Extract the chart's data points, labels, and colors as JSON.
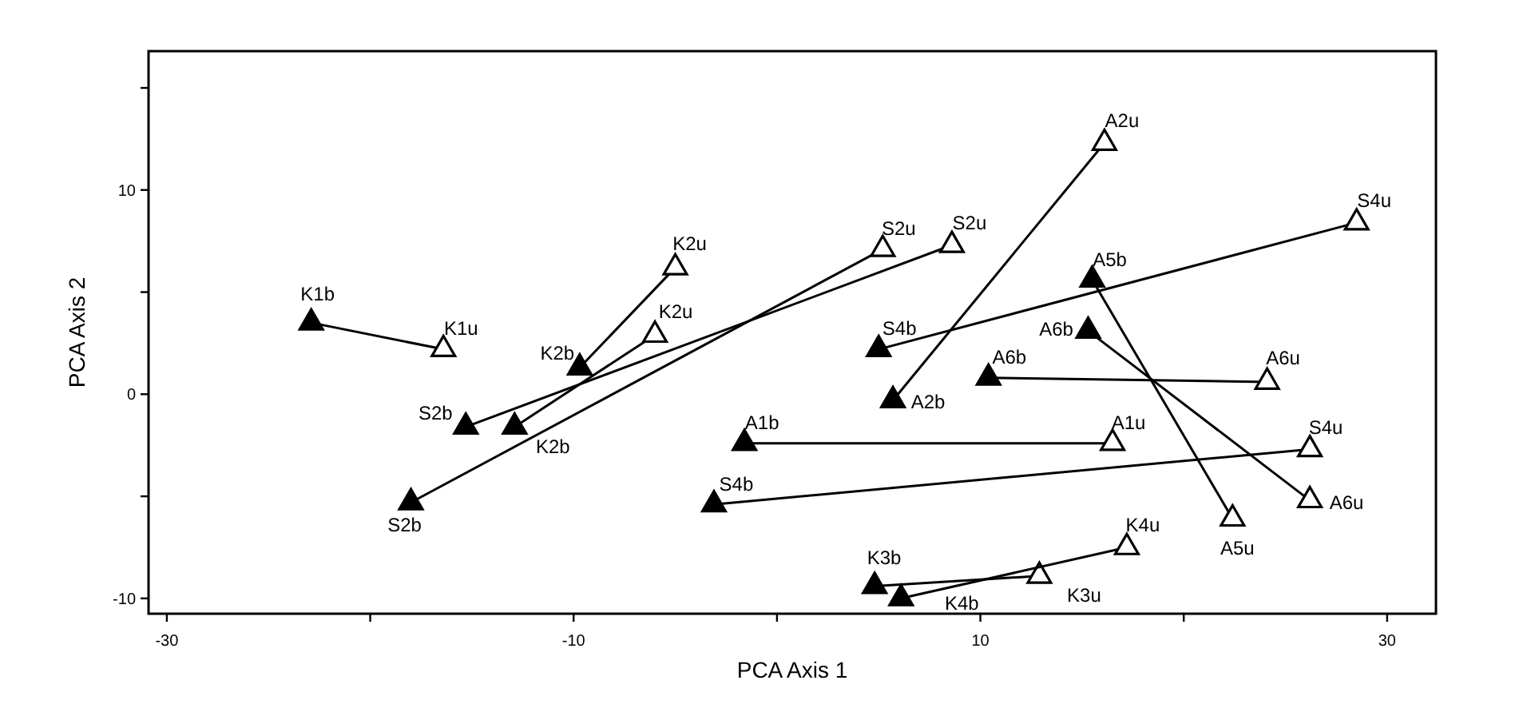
{
  "chart_data": {
    "type": "line",
    "xlabel": "PCA Axis 1",
    "ylabel": "PCA Axis 2",
    "xlim": [
      -30.9,
      32.4
    ],
    "ylim": [
      -10.75,
      16.8
    ],
    "xticks": [
      -30,
      {
        "value": -20,
        "label": null
      },
      -10,
      {
        "value": 0,
        "label": null
      },
      10,
      {
        "value": 20,
        "label": null
      },
      30
    ],
    "yticks": [
      -10,
      {
        "value": -5,
        "label": null
      },
      0,
      {
        "value": 5,
        "label": null
      },
      10,
      {
        "value": 15,
        "label": null
      }
    ],
    "grid": false,
    "marker": "triangle",
    "line_style": "solid",
    "series": [
      {
        "color": "#000000",
        "colors": [
          "#000000",
          "#ffffff"
        ],
        "x": [
          -22.9,
          -16.4
        ],
        "values": [
          3.5,
          2.2
        ]
      },
      {
        "color": "#000000",
        "colors": [
          "#000000",
          "#ffffff"
        ],
        "x": [
          -9.7,
          -5.0
        ],
        "values": [
          1.3,
          6.2
        ]
      },
      {
        "color": "#000000",
        "colors": [
          "#000000",
          "#ffffff"
        ],
        "x": [
          -12.9,
          -6.0
        ],
        "values": [
          -1.6,
          2.9
        ]
      },
      {
        "color": "#000000",
        "colors": [
          "#000000",
          "#ffffff"
        ],
        "x": [
          -15.3,
          8.6
        ],
        "values": [
          -1.6,
          7.3
        ]
      },
      {
        "color": "#000000",
        "colors": [
          "#000000",
          "#ffffff"
        ],
        "x": [
          -18.0,
          5.2
        ],
        "values": [
          -5.3,
          7.1
        ]
      },
      {
        "color": "#000000",
        "colors": [
          "#000000",
          "#ffffff"
        ],
        "x": [
          5.0,
          28.5
        ],
        "values": [
          2.2,
          8.4
        ]
      },
      {
        "color": "#000000",
        "colors": [
          "#000000",
          "#ffffff"
        ],
        "x": [
          -3.1,
          26.2
        ],
        "values": [
          -5.4,
          -2.7
        ]
      },
      {
        "color": "#000000",
        "colors": [
          "#000000",
          "#ffffff"
        ],
        "x": [
          -1.6,
          16.5
        ],
        "values": [
          -2.4,
          -2.4
        ]
      },
      {
        "color": "#000000",
        "colors": [
          "#000000",
          "#ffffff"
        ],
        "x": [
          5.7,
          16.1
        ],
        "values": [
          -0.3,
          12.3
        ]
      },
      {
        "color": "#000000",
        "colors": [
          "#000000",
          "#ffffff"
        ],
        "x": [
          15.5,
          22.4
        ],
        "values": [
          5.6,
          -6.1
        ]
      },
      {
        "color": "#000000",
        "colors": [
          "#000000",
          "#ffffff"
        ],
        "x": [
          15.3,
          26.2
        ],
        "values": [
          3.1,
          -5.2
        ]
      },
      {
        "color": "#000000",
        "colors": [
          "#000000",
          "#ffffff"
        ],
        "x": [
          10.4,
          24.1
        ],
        "values": [
          0.8,
          0.6
        ]
      },
      {
        "color": "#000000",
        "colors": [
          "#000000",
          "#ffffff"
        ],
        "x": [
          4.8,
          12.9
        ],
        "values": [
          -9.4,
          -8.9
        ]
      },
      {
        "color": "#000000",
        "colors": [
          "#000000",
          "#ffffff"
        ],
        "x": [
          6.1,
          17.2
        ],
        "values": [
          -10.0,
          -7.5
        ]
      }
    ],
    "annotations": [
      {
        "text": "K1b",
        "x": -22.9,
        "y": 3.5
      },
      {
        "text": "K1u",
        "x": -16.4,
        "y": 2.2
      },
      {
        "text": "K2u",
        "x": -5.0,
        "y": 6.2
      },
      {
        "text": "K2u",
        "x": -6.0,
        "y": 2.9
      },
      {
        "text": "K2b",
        "x": -9.7,
        "y": 1.3
      },
      {
        "text": "S2b",
        "x": -15.3,
        "y": -1.6
      },
      {
        "text": "K2b",
        "x": -12.9,
        "y": -1.6
      },
      {
        "text": "S2b",
        "x": -18.0,
        "y": -5.3
      },
      {
        "text": "A1b",
        "x": -1.6,
        "y": -2.4
      },
      {
        "text": "S4b",
        "x": -3.1,
        "y": -5.4
      },
      {
        "text": "S2u",
        "x": 5.2,
        "y": 7.1
      },
      {
        "text": "S2u",
        "x": 8.6,
        "y": 7.3
      },
      {
        "text": "A2u",
        "x": 16.1,
        "y": 12.3
      },
      {
        "text": "S4u",
        "x": 28.5,
        "y": 8.4
      },
      {
        "text": "A5b",
        "x": 15.5,
        "y": 5.6
      },
      {
        "text": "S4b",
        "x": 5.0,
        "y": 2.2
      },
      {
        "text": "A6b",
        "x": 15.3,
        "y": 3.1
      },
      {
        "text": "A6b",
        "x": 10.4,
        "y": 0.8
      },
      {
        "text": "A6u",
        "x": 24.1,
        "y": 0.6
      },
      {
        "text": "A2b",
        "x": 5.7,
        "y": -0.3
      },
      {
        "text": "A1u",
        "x": 16.5,
        "y": -2.4
      },
      {
        "text": "S4u",
        "x": 26.2,
        "y": -2.7
      },
      {
        "text": "A6u",
        "x": 26.2,
        "y": -5.2
      },
      {
        "text": "A5u",
        "x": 22.4,
        "y": -6.1
      },
      {
        "text": "K4u",
        "x": 17.2,
        "y": -7.5
      },
      {
        "text": "K3b",
        "x": 4.8,
        "y": -9.4
      },
      {
        "text": "K3u",
        "x": 12.9,
        "y": -8.9
      },
      {
        "text": "K4b",
        "x": 6.1,
        "y": -10.0
      }
    ]
  }
}
